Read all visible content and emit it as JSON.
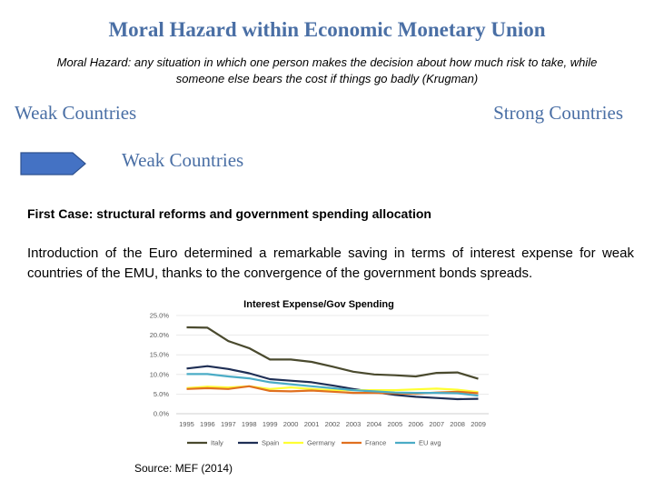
{
  "slide": {
    "title": "Moral Hazard within Economic Monetary Union",
    "definition": "Moral Hazard: any situation in which one person makes the decision about how much risk to take, while someone else bears the cost if things go badly (Krugman)",
    "weak_label": "Weak Countries",
    "strong_label": "Strong Countries",
    "arrow_label": "Weak Countries",
    "arrow_color": "#4472c4",
    "case_heading": "First Case: structural reforms and government spending allocation",
    "intro": "Introduction of the Euro determined a remarkable saving in terms of interest expense for weak countries of the EMU, thanks to the convergence of the government bonds spreads.",
    "source": "Source: MEF (2014)"
  },
  "chart_data": {
    "type": "line",
    "title": "Interest Expense/Gov Spending",
    "x": [
      "1995",
      "1996",
      "1997",
      "1998",
      "1999",
      "2000",
      "2001",
      "2002",
      "2003",
      "2004",
      "2005",
      "2006",
      "2007",
      "2008",
      "2009"
    ],
    "y_ticks": [
      "0.0%",
      "5.0%",
      "10.0%",
      "15.0%",
      "20.0%",
      "25.0%"
    ],
    "ylim": [
      0,
      25
    ],
    "grid": true,
    "legend": "bottom",
    "series": [
      {
        "name": "Italy",
        "color": "#4a4a2e",
        "values": [
          22.0,
          21.9,
          18.5,
          16.7,
          13.8,
          13.8,
          13.2,
          12.0,
          10.7,
          10.0,
          9.8,
          9.5,
          10.4,
          10.5,
          8.9
        ]
      },
      {
        "name": "Spain",
        "color": "#1f2f55",
        "values": [
          11.5,
          12.1,
          11.4,
          10.3,
          8.8,
          8.4,
          8.0,
          7.2,
          6.3,
          5.5,
          4.8,
          4.3,
          4.0,
          3.7,
          3.8
        ]
      },
      {
        "name": "Germany",
        "color": "#ffff33",
        "values": [
          6.5,
          6.9,
          6.7,
          7.0,
          6.3,
          6.7,
          6.3,
          6.0,
          6.0,
          6.0,
          6.0,
          6.2,
          6.4,
          6.1,
          5.5
        ]
      },
      {
        "name": "France",
        "color": "#e07020",
        "values": [
          6.3,
          6.5,
          6.3,
          7.0,
          5.8,
          5.7,
          5.9,
          5.6,
          5.3,
          5.3,
          5.2,
          5.1,
          5.4,
          5.6,
          5.2
        ]
      },
      {
        "name": "EU avg",
        "color": "#4bacc6",
        "values": [
          10.1,
          10.1,
          9.5,
          9.0,
          8.0,
          7.5,
          7.0,
          6.5,
          6.0,
          5.7,
          5.4,
          5.3,
          5.3,
          5.2,
          4.6
        ]
      }
    ]
  }
}
